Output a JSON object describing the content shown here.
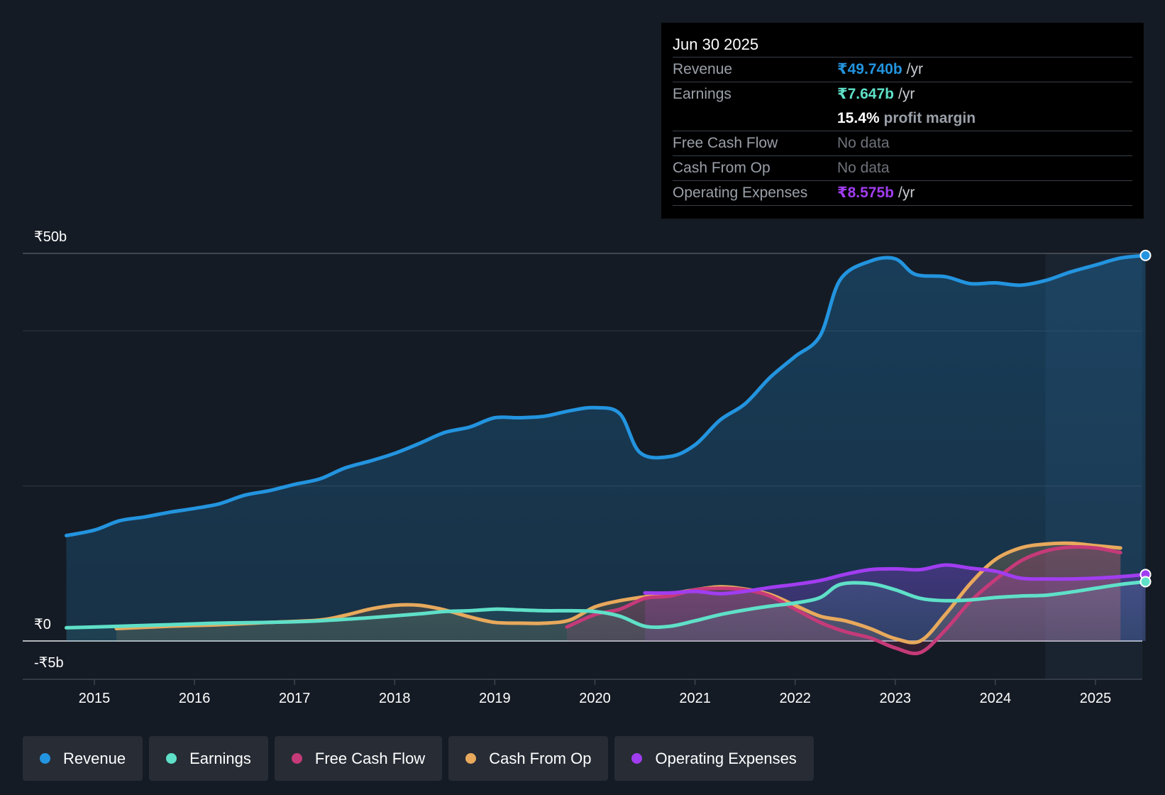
{
  "colors": {
    "revenue": "#2394df",
    "earnings": "#5fe0c8",
    "fcf": "#c53a79",
    "cfo": "#e8a95c",
    "opex": "#a13df0"
  },
  "tooltip": {
    "date": "Jun 30 2025",
    "rows": {
      "revenue": {
        "label": "Revenue",
        "value": "₹49.740b",
        "unit": "/yr"
      },
      "earnings": {
        "label": "Earnings",
        "value": "₹7.647b",
        "unit": "/yr"
      },
      "margin": {
        "value": "15.4%",
        "text": "profit margin"
      },
      "fcf": {
        "label": "Free Cash Flow",
        "value": "No data"
      },
      "cfo": {
        "label": "Cash From Op",
        "value": "No data"
      },
      "opex": {
        "label": "Operating Expenses",
        "value": "₹8.575b",
        "unit": "/yr"
      }
    }
  },
  "legend": [
    {
      "key": "revenue",
      "label": "Revenue"
    },
    {
      "key": "earnings",
      "label": "Earnings"
    },
    {
      "key": "fcf",
      "label": "Free Cash Flow"
    },
    {
      "key": "cfo",
      "label": "Cash From Op"
    },
    {
      "key": "opex",
      "label": "Operating Expenses"
    }
  ],
  "chart_data": {
    "type": "area",
    "title": "",
    "xlabel": "",
    "ylabel": "",
    "ylim": [
      -5,
      50
    ],
    "xlim": [
      2014.72,
      2025.5
    ],
    "y_tick_labels": [
      {
        "value": 50,
        "label": "₹50b"
      },
      {
        "value": 0,
        "label": "₹0"
      },
      {
        "value": -5,
        "label": "-₹5b"
      }
    ],
    "gridlines": [
      50,
      40,
      20
    ],
    "x_ticks": [
      2015,
      2016,
      2017,
      2018,
      2019,
      2020,
      2021,
      2022,
      2023,
      2024,
      2025
    ],
    "highlight_start": 2024.5,
    "series": [
      {
        "key": "revenue",
        "name": "Revenue",
        "unit": "₹b",
        "points": [
          [
            2014.72,
            13.6
          ],
          [
            2015.0,
            14.3
          ],
          [
            2015.25,
            15.5
          ],
          [
            2015.5,
            16.0
          ],
          [
            2015.75,
            16.6
          ],
          [
            2016.0,
            17.1
          ],
          [
            2016.25,
            17.7
          ],
          [
            2016.5,
            18.8
          ],
          [
            2016.75,
            19.4
          ],
          [
            2017.0,
            20.2
          ],
          [
            2017.25,
            20.9
          ],
          [
            2017.5,
            22.3
          ],
          [
            2017.75,
            23.2
          ],
          [
            2018.0,
            24.2
          ],
          [
            2018.25,
            25.5
          ],
          [
            2018.5,
            26.9
          ],
          [
            2018.75,
            27.6
          ],
          [
            2019.0,
            28.8
          ],
          [
            2019.25,
            28.8
          ],
          [
            2019.5,
            29.0
          ],
          [
            2019.75,
            29.7
          ],
          [
            2020.0,
            30.1
          ],
          [
            2020.25,
            29.3
          ],
          [
            2020.45,
            24.3
          ],
          [
            2020.75,
            23.8
          ],
          [
            2021.0,
            25.3
          ],
          [
            2021.25,
            28.5
          ],
          [
            2021.5,
            30.6
          ],
          [
            2021.75,
            34.0
          ],
          [
            2022.0,
            36.7
          ],
          [
            2022.25,
            39.4
          ],
          [
            2022.45,
            46.6
          ],
          [
            2022.75,
            49.0
          ],
          [
            2023.0,
            49.3
          ],
          [
            2023.2,
            47.3
          ],
          [
            2023.5,
            47.0
          ],
          [
            2023.75,
            46.1
          ],
          [
            2024.0,
            46.2
          ],
          [
            2024.25,
            45.9
          ],
          [
            2024.5,
            46.5
          ],
          [
            2024.75,
            47.6
          ],
          [
            2025.0,
            48.5
          ],
          [
            2025.25,
            49.4
          ],
          [
            2025.5,
            49.74
          ]
        ]
      },
      {
        "key": "earnings",
        "name": "Earnings",
        "unit": "₹b",
        "points": [
          [
            2014.72,
            1.7
          ],
          [
            2015.25,
            1.9
          ],
          [
            2015.75,
            2.1
          ],
          [
            2016.25,
            2.3
          ],
          [
            2016.75,
            2.4
          ],
          [
            2017.25,
            2.6
          ],
          [
            2017.75,
            3.0
          ],
          [
            2018.25,
            3.5
          ],
          [
            2018.5,
            3.8
          ],
          [
            2018.75,
            3.9
          ],
          [
            2019.0,
            4.1
          ],
          [
            2019.25,
            4.0
          ],
          [
            2019.5,
            3.9
          ],
          [
            2019.75,
            3.9
          ],
          [
            2020.0,
            3.8
          ],
          [
            2020.25,
            3.2
          ],
          [
            2020.5,
            1.9
          ],
          [
            2020.75,
            1.9
          ],
          [
            2021.0,
            2.6
          ],
          [
            2021.25,
            3.4
          ],
          [
            2021.5,
            4.0
          ],
          [
            2021.75,
            4.5
          ],
          [
            2022.0,
            4.9
          ],
          [
            2022.25,
            5.6
          ],
          [
            2022.45,
            7.3
          ],
          [
            2022.75,
            7.4
          ],
          [
            2023.0,
            6.6
          ],
          [
            2023.25,
            5.5
          ],
          [
            2023.5,
            5.2
          ],
          [
            2023.75,
            5.3
          ],
          [
            2024.0,
            5.6
          ],
          [
            2024.25,
            5.8
          ],
          [
            2024.5,
            5.9
          ],
          [
            2024.75,
            6.3
          ],
          [
            2025.0,
            6.8
          ],
          [
            2025.25,
            7.3
          ],
          [
            2025.5,
            7.647
          ]
        ]
      },
      {
        "key": "fcf",
        "name": "Free Cash Flow",
        "unit": "₹b",
        "points": [
          [
            2019.72,
            1.8
          ],
          [
            2020.0,
            3.4
          ],
          [
            2020.25,
            4.1
          ],
          [
            2020.5,
            5.5
          ],
          [
            2020.75,
            5.8
          ],
          [
            2021.0,
            6.6
          ],
          [
            2021.25,
            6.8
          ],
          [
            2021.5,
            6.6
          ],
          [
            2021.75,
            5.8
          ],
          [
            2022.0,
            4.1
          ],
          [
            2022.25,
            2.4
          ],
          [
            2022.5,
            1.2
          ],
          [
            2022.75,
            0.4
          ],
          [
            2023.0,
            -0.9
          ],
          [
            2023.25,
            -1.5
          ],
          [
            2023.5,
            1.4
          ],
          [
            2023.75,
            5.1
          ],
          [
            2024.0,
            7.9
          ],
          [
            2024.25,
            10.3
          ],
          [
            2024.5,
            11.6
          ],
          [
            2024.75,
            12.1
          ],
          [
            2025.0,
            12.0
          ],
          [
            2025.25,
            11.4
          ]
        ]
      },
      {
        "key": "cfo",
        "name": "Cash From Op",
        "unit": "₹b",
        "points": [
          [
            2015.22,
            1.6
          ],
          [
            2015.75,
            1.9
          ],
          [
            2016.25,
            2.1
          ],
          [
            2016.75,
            2.4
          ],
          [
            2017.25,
            2.7
          ],
          [
            2017.5,
            3.3
          ],
          [
            2017.75,
            4.1
          ],
          [
            2018.0,
            4.6
          ],
          [
            2018.25,
            4.6
          ],
          [
            2018.5,
            4.0
          ],
          [
            2018.75,
            3.1
          ],
          [
            2019.0,
            2.4
          ],
          [
            2019.25,
            2.3
          ],
          [
            2019.5,
            2.3
          ],
          [
            2019.75,
            2.7
          ],
          [
            2020.0,
            4.4
          ],
          [
            2020.25,
            5.2
          ],
          [
            2020.5,
            5.7
          ],
          [
            2020.75,
            6.1
          ],
          [
            2021.0,
            6.6
          ],
          [
            2021.25,
            7.0
          ],
          [
            2021.5,
            6.7
          ],
          [
            2021.75,
            6.0
          ],
          [
            2022.0,
            4.6
          ],
          [
            2022.25,
            3.2
          ],
          [
            2022.5,
            2.6
          ],
          [
            2022.75,
            1.6
          ],
          [
            2023.0,
            0.3
          ],
          [
            2023.25,
            0.0
          ],
          [
            2023.5,
            3.4
          ],
          [
            2023.75,
            7.4
          ],
          [
            2024.0,
            10.5
          ],
          [
            2024.25,
            12.0
          ],
          [
            2024.5,
            12.5
          ],
          [
            2024.75,
            12.6
          ],
          [
            2025.0,
            12.3
          ],
          [
            2025.25,
            12.0
          ]
        ]
      },
      {
        "key": "opex",
        "name": "Operating Expenses",
        "unit": "₹b",
        "points": [
          [
            2020.5,
            6.2
          ],
          [
            2020.75,
            6.2
          ],
          [
            2021.0,
            6.4
          ],
          [
            2021.25,
            6.1
          ],
          [
            2021.5,
            6.4
          ],
          [
            2021.75,
            6.9
          ],
          [
            2022.0,
            7.3
          ],
          [
            2022.25,
            7.8
          ],
          [
            2022.5,
            8.6
          ],
          [
            2022.75,
            9.2
          ],
          [
            2023.0,
            9.3
          ],
          [
            2023.25,
            9.2
          ],
          [
            2023.5,
            9.8
          ],
          [
            2023.75,
            9.4
          ],
          [
            2024.0,
            9.0
          ],
          [
            2024.25,
            8.1
          ],
          [
            2024.5,
            8.0
          ],
          [
            2024.75,
            8.0
          ],
          [
            2025.0,
            8.1
          ],
          [
            2025.25,
            8.3
          ],
          [
            2025.5,
            8.575
          ]
        ]
      }
    ]
  }
}
